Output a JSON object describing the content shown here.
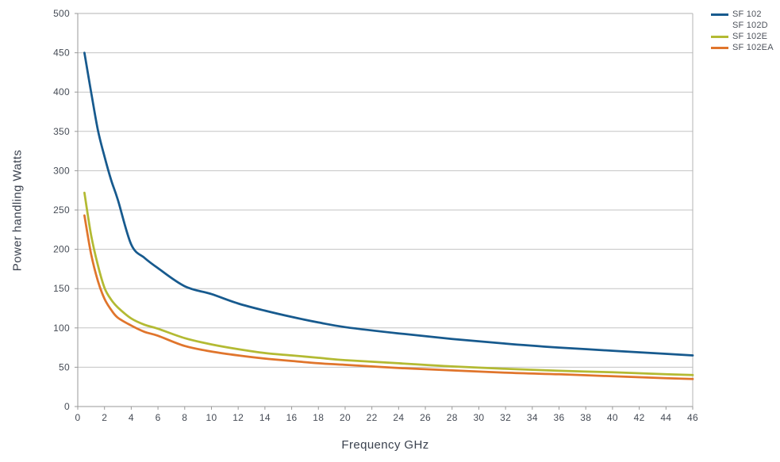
{
  "page": {
    "background": "#ffffff"
  },
  "axis_titles": {
    "y": "Power handling Watts",
    "x": "Frequency GHz"
  },
  "chart_data": {
    "type": "line",
    "title": "",
    "xlabel": "Frequency GHz",
    "ylabel": "Power handling Watts",
    "xlim": [
      0,
      46
    ],
    "ylim": [
      0,
      500
    ],
    "x_tick_step": 2,
    "y_tick_step": 50,
    "grid": "horizontal",
    "legend_position": "top-right-outside",
    "styles": {
      "grid_color": "#c3c3c3",
      "border_color": "#b3b3b3",
      "axis_color": "#9a9a9a",
      "tick_label_color": "#454b55",
      "line_width": 2.75
    },
    "x": [
      0.5,
      1,
      1.5,
      2,
      2.5,
      3,
      4,
      5,
      6,
      8,
      10,
      12,
      14,
      16,
      18,
      20,
      24,
      28,
      32,
      36,
      40,
      44,
      46
    ],
    "series": [
      {
        "name": "SF 102",
        "color": "#175a8e",
        "visible": true,
        "values": [
          450,
          400,
          352,
          318,
          288,
          263,
          206,
          189,
          176,
          153,
          143,
          131,
          122,
          114,
          107,
          101,
          93,
          86,
          80,
          75,
          71,
          67,
          65
        ]
      },
      {
        "name": "SF 102D",
        "color": "#ffffff",
        "visible": false,
        "values": []
      },
      {
        "name": "SF 102E",
        "color": "#b3ba33",
        "visible": true,
        "values": [
          272,
          218,
          180,
          151,
          136,
          126,
          112,
          104,
          99,
          87,
          79,
          73,
          68,
          65,
          62,
          59,
          55,
          51,
          48,
          45.5,
          43.5,
          41,
          40
        ]
      },
      {
        "name": "SF 102EA",
        "color": "#e0752c",
        "visible": true,
        "values": [
          243,
          194,
          160,
          137,
          123,
          113,
          103,
          95,
          90,
          77,
          70,
          65,
          61,
          58,
          55,
          53,
          49,
          46,
          43,
          41,
          38.5,
          36,
          35
        ]
      }
    ]
  }
}
